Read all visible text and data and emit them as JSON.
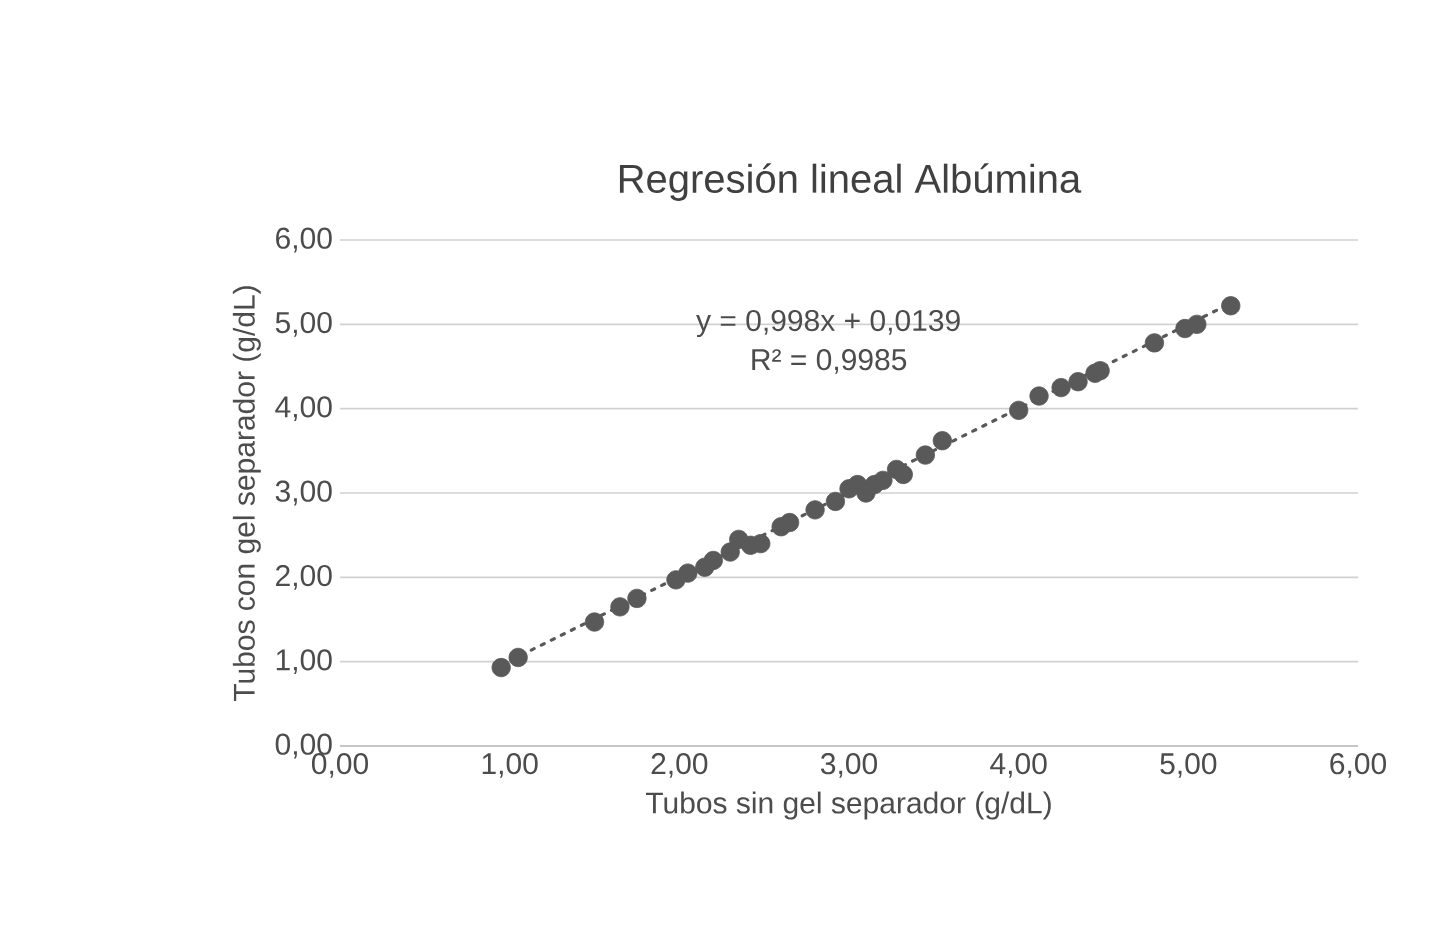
{
  "chart_data": {
    "type": "scatter",
    "title": "Regresión lineal Albúmina",
    "xlabel": "Tubos sin gel separador (g/dL)",
    "ylabel": "Tubos con gel separador (g/dL)",
    "annotations": [
      "y = 0,998x + 0,0139",
      "R² = 0,9985"
    ],
    "series": [
      {
        "type": "scatter",
        "color": "#595959",
        "marker": "circle",
        "x": [
          0.95,
          1.05,
          1.5,
          1.65,
          1.75,
          1.98,
          2.05,
          2.15,
          2.2,
          2.3,
          2.35,
          2.42,
          2.48,
          2.6,
          2.65,
          2.8,
          2.92,
          3.0,
          3.05,
          3.1,
          3.15,
          3.2,
          3.28,
          3.32,
          3.45,
          3.55,
          4.0,
          4.12,
          4.25,
          4.35,
          4.45,
          4.48,
          4.8,
          4.98,
          5.05,
          5.25
        ],
        "values": [
          0.93,
          1.05,
          1.47,
          1.65,
          1.75,
          1.97,
          2.05,
          2.12,
          2.2,
          2.3,
          2.45,
          2.38,
          2.4,
          2.6,
          2.65,
          2.8,
          2.9,
          3.05,
          3.1,
          3.0,
          3.1,
          3.15,
          3.28,
          3.22,
          3.45,
          3.62,
          3.98,
          4.15,
          4.25,
          4.32,
          4.42,
          4.45,
          4.78,
          4.95,
          5.0,
          5.22
        ]
      },
      {
        "type": "line",
        "color": "#595959",
        "marker": "none",
        "line_style": "dotted",
        "x": [
          0.95,
          5.25
        ],
        "values": [
          0.96,
          5.25
        ]
      }
    ],
    "xlim": [
      0,
      6
    ],
    "ylim": [
      0,
      6
    ],
    "xticks": [
      {
        "value": 0,
        "label": "0,00"
      },
      {
        "value": 1,
        "label": "1,00"
      },
      {
        "value": 2,
        "label": "2,00"
      },
      {
        "value": 3,
        "label": "3,00"
      },
      {
        "value": 4,
        "label": "4,00"
      },
      {
        "value": 5,
        "label": "5,00"
      },
      {
        "value": 6,
        "label": "6,00"
      }
    ],
    "yticks": [
      {
        "value": 0,
        "label": "0,00"
      },
      {
        "value": 1,
        "label": "1,00"
      },
      {
        "value": 2,
        "label": "2,00"
      },
      {
        "value": 3,
        "label": "3,00"
      },
      {
        "value": 4,
        "label": "4,00"
      },
      {
        "value": 5,
        "label": "5,00"
      },
      {
        "value": 6,
        "label": "6,00"
      }
    ],
    "grid": "y"
  }
}
